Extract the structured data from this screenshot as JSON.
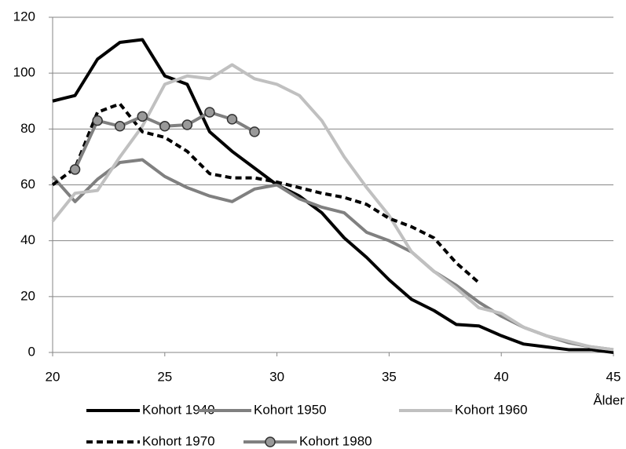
{
  "chart_data": {
    "type": "line",
    "x_label": "Ålder",
    "x": [
      20,
      21,
      22,
      23,
      24,
      25,
      26,
      27,
      28,
      29,
      30,
      31,
      32,
      33,
      34,
      35,
      36,
      37,
      38,
      39,
      40,
      41,
      42,
      43,
      44,
      45
    ],
    "xlim": [
      20,
      45
    ],
    "xticks": [
      20,
      25,
      30,
      35,
      40,
      45
    ],
    "ylim": [
      0,
      120
    ],
    "yticks": [
      0,
      20,
      40,
      60,
      80,
      100,
      120
    ],
    "grid": true,
    "legend": "bottom",
    "series": [
      {
        "name": "Kohort 1940",
        "color": "#000000",
        "line_style": "solid",
        "values": [
          90,
          92,
          105,
          111,
          112,
          99,
          96,
          79,
          72,
          66,
          60,
          56,
          50,
          41,
          34,
          26,
          19,
          15,
          10,
          9.5,
          6,
          3,
          2,
          1,
          1,
          0
        ]
      },
      {
        "name": "Kohort 1950",
        "color": "#808080",
        "line_style": "solid",
        "values": [
          63,
          54,
          62,
          68,
          69,
          63,
          59,
          56,
          54,
          58.5,
          60,
          55,
          52,
          50,
          43,
          40,
          36,
          29,
          24,
          18,
          13,
          9,
          6,
          3.5,
          2,
          1
        ]
      },
      {
        "name": "Kohort 1960",
        "color": "#c0c0c0",
        "line_style": "solid",
        "values": [
          47,
          57,
          58,
          70,
          81,
          96,
          99,
          98,
          103,
          98,
          96,
          92,
          83,
          70,
          59,
          49,
          36,
          29,
          23,
          16,
          14,
          9,
          6,
          4,
          2,
          1
        ]
      },
      {
        "name": "Kohort 1970",
        "color": "#000000",
        "line_style": "dashed",
        "values": [
          60,
          66,
          86,
          89,
          79,
          77,
          72,
          64,
          62.5,
          62.5,
          61,
          59,
          57,
          55.5,
          53,
          48,
          45,
          41,
          32,
          25,
          null,
          null,
          null,
          null,
          null,
          null
        ]
      },
      {
        "name": "Kohort 1980",
        "color": "#808080",
        "line_style": "solid",
        "marker": "circle",
        "values": [
          null,
          65.5,
          83,
          81,
          84.5,
          81,
          81.5,
          86,
          83.5,
          79,
          null,
          null,
          null,
          null,
          null,
          null,
          null,
          null,
          null,
          null,
          null,
          null,
          null,
          null,
          null,
          null
        ]
      }
    ]
  }
}
